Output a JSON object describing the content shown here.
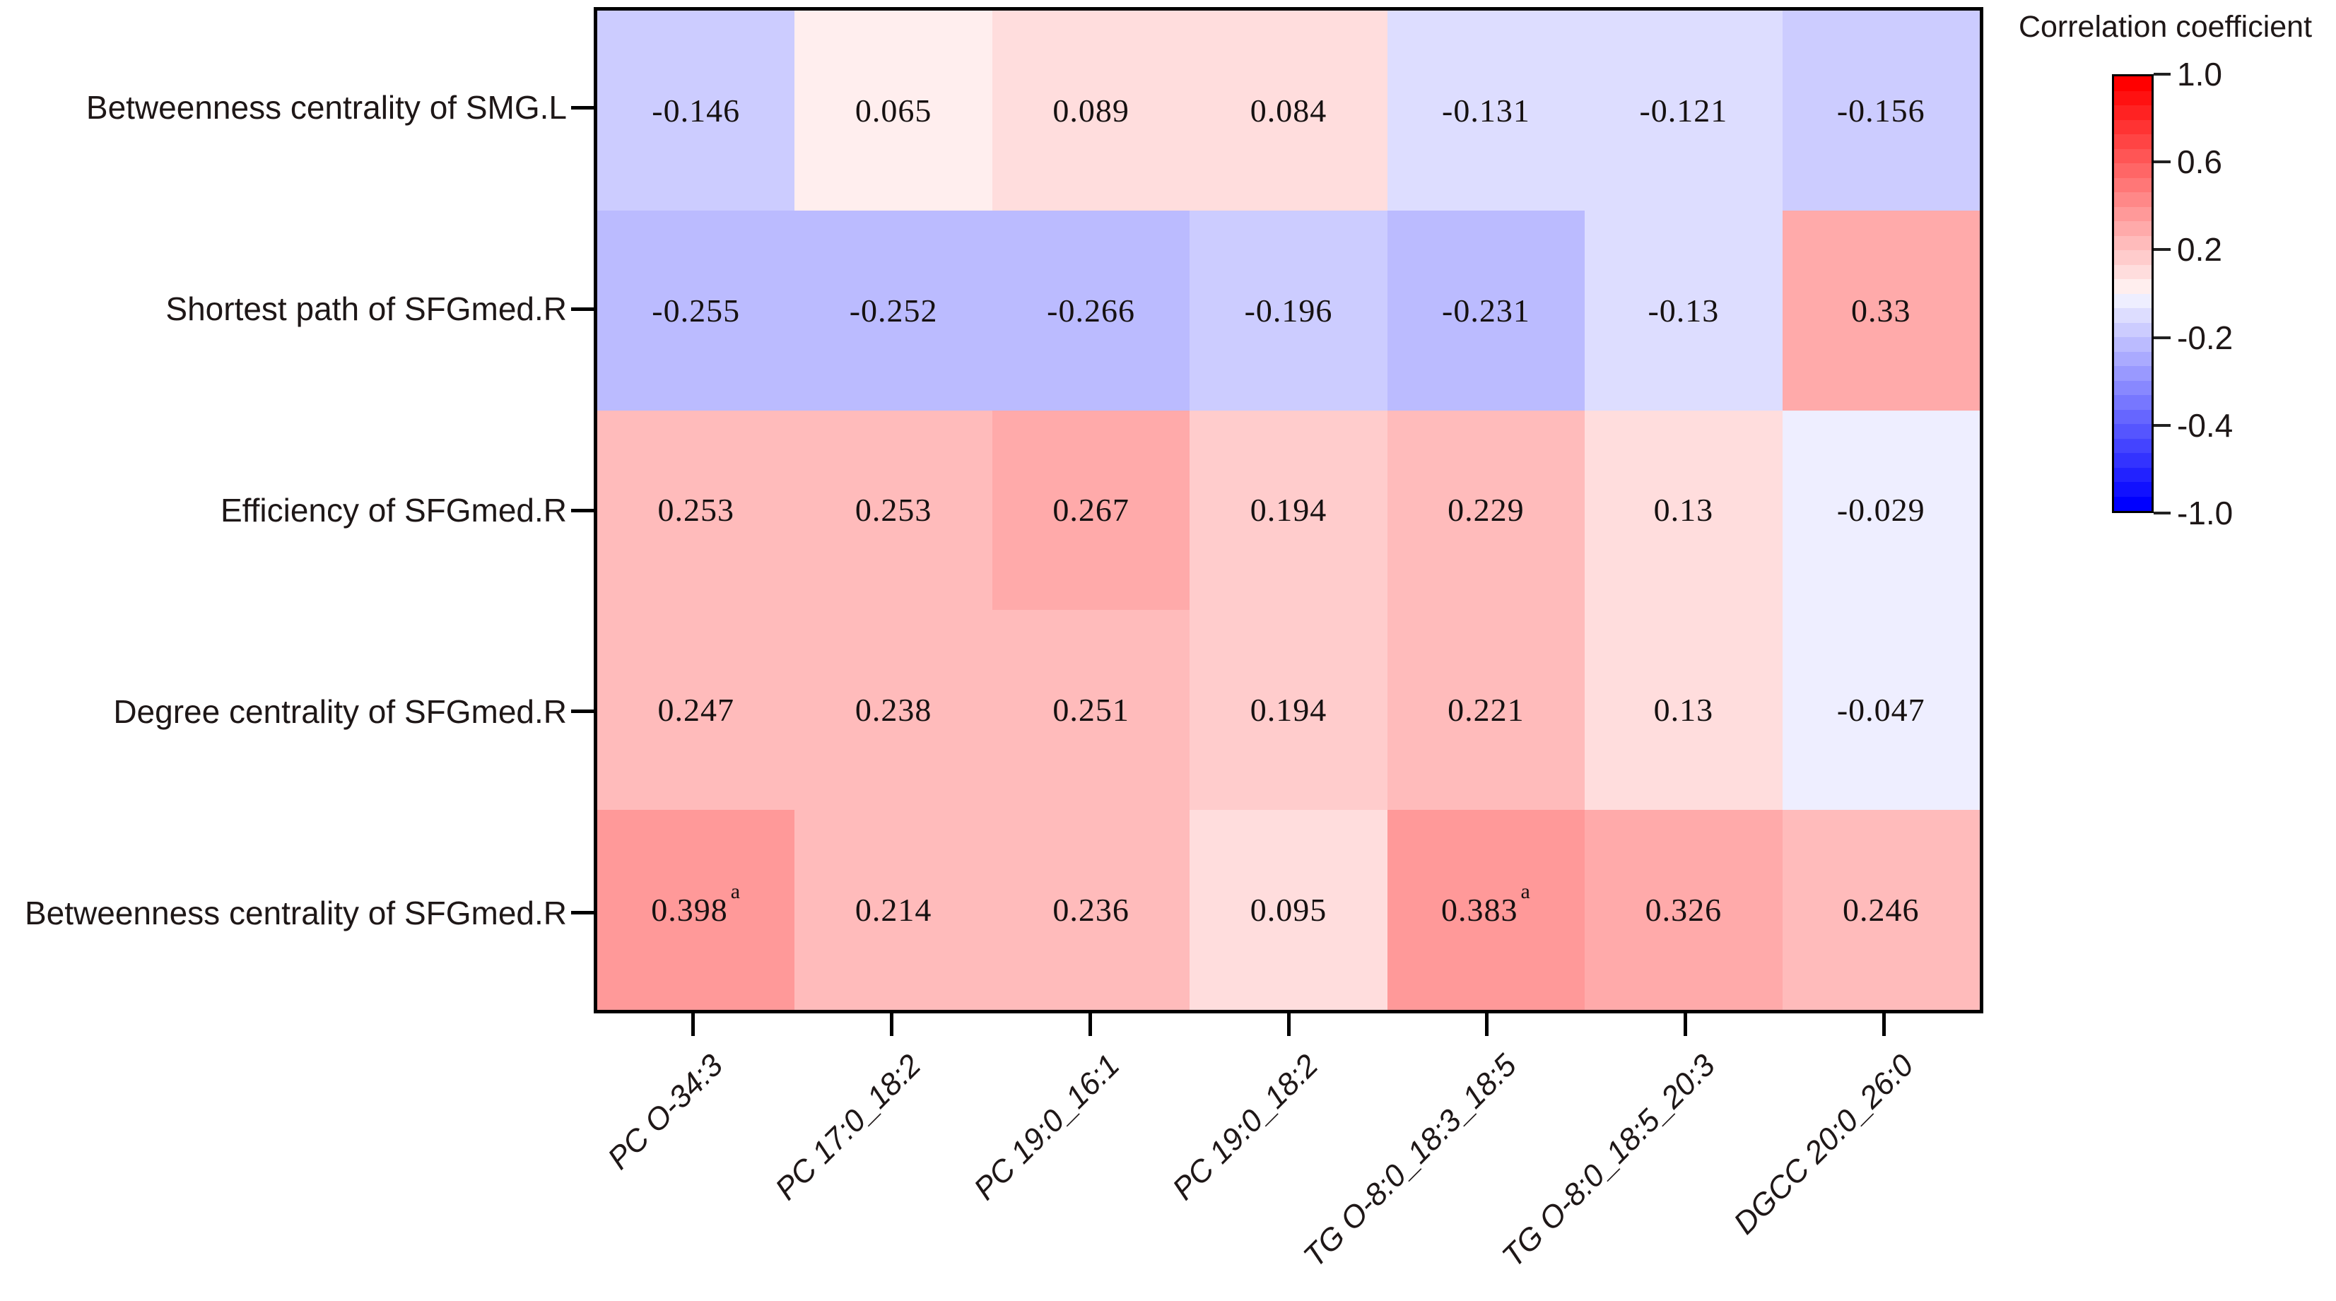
{
  "figure": {
    "background": "#ffffff"
  },
  "chart_data": {
    "type": "heatmap",
    "title": "",
    "rows": [
      "Betweenness centrality of SMG.L",
      "Shortest path of SFGmed.R",
      "Efficiency of SFGmed.R",
      "Degree centrality of SFGmed.R",
      "Betweenness centrality of SFGmed.R"
    ],
    "columns": [
      "PC O-34:3",
      "PC 17:0_18:2",
      "PC 19:0_16:1",
      "PC 19:0_18:2",
      "TG O-8:0_18:3_18:5",
      "TG O-8:0_18:5_20:3",
      "DGCC 20:0_26:0"
    ],
    "values": [
      [
        -0.146,
        0.065,
        0.089,
        0.084,
        -0.131,
        -0.121,
        -0.156
      ],
      [
        -0.255,
        -0.252,
        -0.266,
        -0.196,
        -0.231,
        -0.13,
        0.33
      ],
      [
        0.253,
        0.253,
        0.267,
        0.194,
        0.229,
        0.13,
        -0.029
      ],
      [
        0.247,
        0.238,
        0.251,
        0.194,
        0.221,
        0.13,
        -0.047
      ],
      [
        0.398,
        0.214,
        0.236,
        0.095,
        0.383,
        0.326,
        0.246
      ]
    ],
    "cell_value_superscript_marker": "a",
    "superscript_cells": [
      [
        4,
        0
      ],
      [
        4,
        4
      ]
    ],
    "colorbar": {
      "title": "Correlation coefficient",
      "tick_labels": [
        "1.0",
        "0.6",
        "0.2",
        "-0.2",
        "-0.4",
        "-1.0"
      ],
      "value_range": [
        -1,
        1
      ],
      "levels": 30,
      "legend_position": "right",
      "colormap": {
        "max": "#ff0000",
        "mid": "#ffffff",
        "min": "#0000ff"
      }
    },
    "layout": {
      "grid": false,
      "x_tick_rotation_deg": 45,
      "cell_text_color": "#161111",
      "axis_color": "#000000",
      "label_color": "#1e1717"
    }
  }
}
